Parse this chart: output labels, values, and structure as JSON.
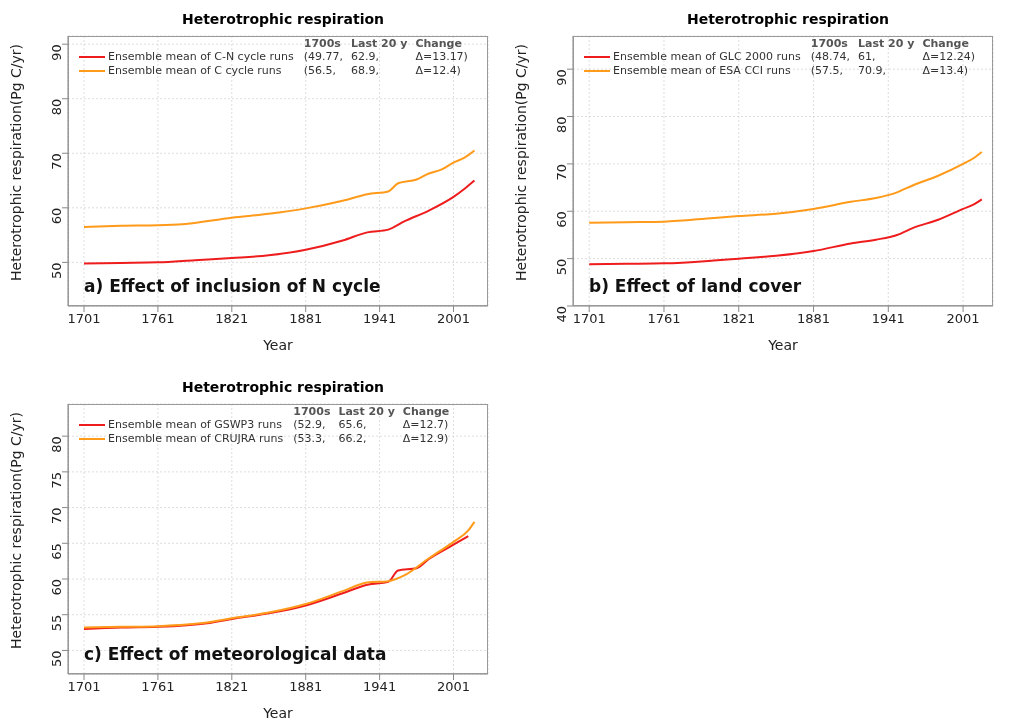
{
  "chart_data": [
    {
      "type": "line",
      "title": "Heterotrophic respiration",
      "xlabel": "Year",
      "ylabel": "Heterotrophic respiration(Pg C/yr)",
      "xlim": [
        1688,
        2029
      ],
      "xticks": [
        1701,
        1761,
        1821,
        1881,
        1941,
        2001
      ],
      "ylim": [
        42,
        91.5
      ],
      "yticks": [
        50,
        60,
        70,
        80,
        90
      ],
      "grid": true,
      "legend": "top left",
      "annotations": [
        "a) Effect of inclusion of N cycle",
        "1700s",
        "Last 20 y",
        "Change",
        "(49.77,",
        "62.9,",
        "Δ=13.17)",
        "(56.5,",
        "68.9,",
        "Δ=12.4)"
      ],
      "series": [
        {
          "name": "Ensemble mean of C-N cycle runs",
          "color": "#ee1c1c",
          "x": [
            1701,
            1731,
            1761,
            1791,
            1821,
            1851,
            1881,
            1911,
            1931,
            1948,
            1961,
            1981,
            2001,
            2010,
            2018
          ],
          "values": [
            49.8,
            49.9,
            50.0,
            50.4,
            50.8,
            51.3,
            52.3,
            54.0,
            55.5,
            56.0,
            57.5,
            59.5,
            62.0,
            63.5,
            65.0
          ]
        },
        {
          "name": "Ensemble mean of C cycle runs",
          "color": "#ff9a1a",
          "x": [
            1701,
            1731,
            1761,
            1781,
            1821,
            1851,
            1881,
            1911,
            1931,
            1948,
            1956,
            1971,
            1981,
            1991,
            2001,
            2010,
            2018
          ],
          "values": [
            56.5,
            56.7,
            56.8,
            57.0,
            58.2,
            58.9,
            59.9,
            61.3,
            62.5,
            63.0,
            64.5,
            65.2,
            66.3,
            67.0,
            68.3,
            69.2,
            70.5
          ]
        }
      ]
    },
    {
      "type": "line",
      "title": "Heterotrophic respiration",
      "xlabel": "Year",
      "ylabel": "Heterotrophic respiration(Pg C/yr)",
      "xlim": [
        1688,
        2025
      ],
      "xticks": [
        1701,
        1761,
        1821,
        1881,
        1941,
        2001
      ],
      "ylim": [
        40,
        97
      ],
      "yticks": [
        40,
        50,
        60,
        70,
        80,
        90
      ],
      "grid": true,
      "legend": "top left",
      "annotations": [
        "b) Effect of land cover",
        "1700s",
        "Last 20 y",
        "Change",
        "(48.74,",
        "61,",
        "Δ=12.24)",
        "(57.5,",
        "70.9,",
        "Δ=13.4)"
      ],
      "series": [
        {
          "name": "Ensemble mean of GLC 2000 runs",
          "color": "#ee1c1c",
          "x": [
            1701,
            1731,
            1761,
            1801,
            1821,
            1851,
            1881,
            1911,
            1931,
            1948,
            1961,
            1981,
            2001,
            2010,
            2016
          ],
          "values": [
            48.8,
            48.9,
            49.0,
            49.6,
            50.0,
            50.6,
            51.6,
            53.2,
            54.0,
            55.0,
            56.5,
            58.2,
            60.5,
            61.5,
            62.5
          ]
        },
        {
          "name": "Ensemble mean of ESA CCI runs",
          "color": "#ff9a1a",
          "x": [
            1701,
            1731,
            1761,
            1801,
            1821,
            1851,
            1881,
            1911,
            1931,
            1948,
            1961,
            1981,
            2001,
            2010,
            2016
          ],
          "values": [
            57.6,
            57.7,
            57.8,
            58.6,
            59.0,
            59.5,
            60.5,
            62.0,
            62.8,
            64.0,
            65.5,
            67.5,
            70.0,
            71.3,
            72.5
          ]
        }
      ]
    },
    {
      "type": "line",
      "title": "Heterotrophic respiration",
      "xlabel": "Year",
      "ylabel": "Heterotrophic respiration(Pg C/yr)",
      "xlim": [
        1688,
        2029
      ],
      "xticks": [
        1701,
        1761,
        1821,
        1881,
        1941,
        2001
      ],
      "ylim": [
        46.7,
        84.5
      ],
      "yticks": [
        50,
        55,
        60,
        65,
        70,
        75,
        80
      ],
      "grid": true,
      "legend": "top left",
      "annotations": [
        "c) Effect of meteorological data",
        "1700s",
        "Last 20 y",
        "Change",
        "(52.9,",
        "65.6,",
        "Δ=12.7)",
        "(53.3,",
        "66.2,",
        "Δ=12.9)"
      ],
      "series": [
        {
          "name": "Ensemble mean of GSWP3 runs",
          "color": "#ee1c1c",
          "x": [
            1701,
            1731,
            1761,
            1801,
            1821,
            1851,
            1881,
            1911,
            1931,
            1948,
            1956,
            1971,
            1981,
            2001,
            2013
          ],
          "values": [
            53.0,
            53.2,
            53.3,
            53.8,
            54.4,
            55.2,
            56.3,
            58.0,
            59.2,
            59.6,
            61.2,
            61.5,
            62.8,
            64.8,
            66.0
          ]
        },
        {
          "name": "Ensemble mean of CRUJRA runs",
          "color": "#ff9a1a",
          "x": [
            1701,
            1731,
            1761,
            1801,
            1821,
            1851,
            1881,
            1911,
            1931,
            1948,
            1961,
            1981,
            2001,
            2013,
            2018
          ],
          "values": [
            53.2,
            53.3,
            53.4,
            53.9,
            54.5,
            55.3,
            56.5,
            58.3,
            59.5,
            59.7,
            60.5,
            62.9,
            65.2,
            66.8,
            68.0
          ]
        }
      ]
    }
  ]
}
